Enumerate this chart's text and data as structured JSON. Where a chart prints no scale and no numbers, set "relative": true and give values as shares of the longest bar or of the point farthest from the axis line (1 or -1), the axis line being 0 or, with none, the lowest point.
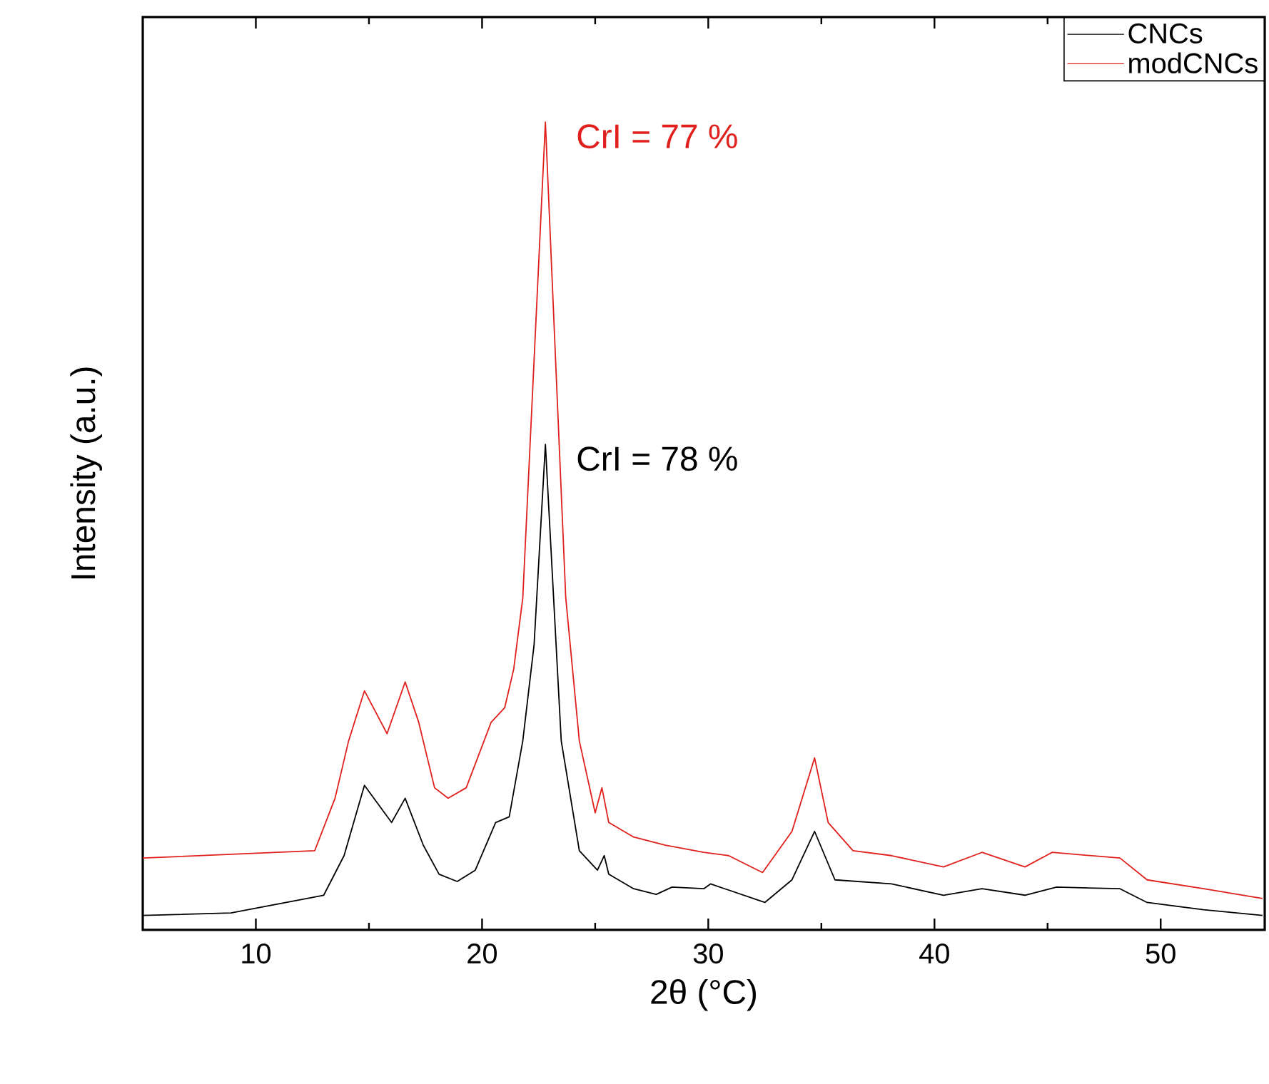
{
  "chart_data": {
    "type": "line",
    "xlabel": "2θ (°C)",
    "ylabel": "Intensity (a.u.)",
    "relative": true,
    "tick_labels": "x",
    "legend": "top right",
    "grid": false,
    "marker": "none",
    "line_style": "solid",
    "xlim": [
      5,
      54.6
    ],
    "xticks": [
      10,
      20,
      30,
      40,
      50
    ],
    "annotations": [
      {
        "text": "CrI = 77 %",
        "x": 22.8,
        "y": 1
      },
      {
        "text": "CrI = 78 %",
        "x": 22.8,
        "y": 0.601
      }
    ],
    "series": [
      {
        "name": "CNCs",
        "color": "#000000",
        "x": [
          5.0,
          8.9,
          13.0,
          13.9,
          14.8,
          16.0,
          16.6,
          17.4,
          18.1,
          18.9,
          19.7,
          20.6,
          21.2,
          21.8,
          22.3,
          22.8,
          23.5,
          24.3,
          25.1,
          25.4,
          25.6,
          26.7,
          27.7,
          28.4,
          29.8,
          30.1,
          32.5,
          33.7,
          34.7,
          35.6,
          38.1,
          40.4,
          42.1,
          44.0,
          45.4,
          48.2,
          49.4,
          51.9,
          54.5
        ],
        "values": [
          0.018,
          0.021,
          0.043,
          0.092,
          0.179,
          0.133,
          0.163,
          0.105,
          0.069,
          0.06,
          0.074,
          0.133,
          0.14,
          0.234,
          0.353,
          0.601,
          0.234,
          0.098,
          0.074,
          0.092,
          0.069,
          0.051,
          0.044,
          0.053,
          0.051,
          0.057,
          0.034,
          0.062,
          0.122,
          0.062,
          0.057,
          0.043,
          0.051,
          0.043,
          0.053,
          0.051,
          0.034,
          0.025,
          0.018
        ]
      },
      {
        "name": "modCNCs",
        "color": "#e0201c",
        "x": [
          5.0,
          12.6,
          13.5,
          14.1,
          14.8,
          15.8,
          16.6,
          17.2,
          17.9,
          18.5,
          19.3,
          20.4,
          21.0,
          21.4,
          21.8,
          22.8,
          23.7,
          24.3,
          25.0,
          25.3,
          25.6,
          26.7,
          28.1,
          29.8,
          30.9,
          32.4,
          33.7,
          34.7,
          35.3,
          36.4,
          38.1,
          40.4,
          42.1,
          44.0,
          45.2,
          48.2,
          49.4,
          51.9,
          54.5
        ],
        "values": [
          0.089,
          0.098,
          0.163,
          0.234,
          0.296,
          0.243,
          0.307,
          0.257,
          0.176,
          0.163,
          0.176,
          0.257,
          0.275,
          0.323,
          0.411,
          1,
          0.411,
          0.234,
          0.145,
          0.176,
          0.133,
          0.115,
          0.105,
          0.096,
          0.092,
          0.071,
          0.122,
          0.213,
          0.133,
          0.098,
          0.092,
          0.078,
          0.096,
          0.078,
          0.096,
          0.089,
          0.062,
          0.051,
          0.039
        ]
      }
    ]
  }
}
